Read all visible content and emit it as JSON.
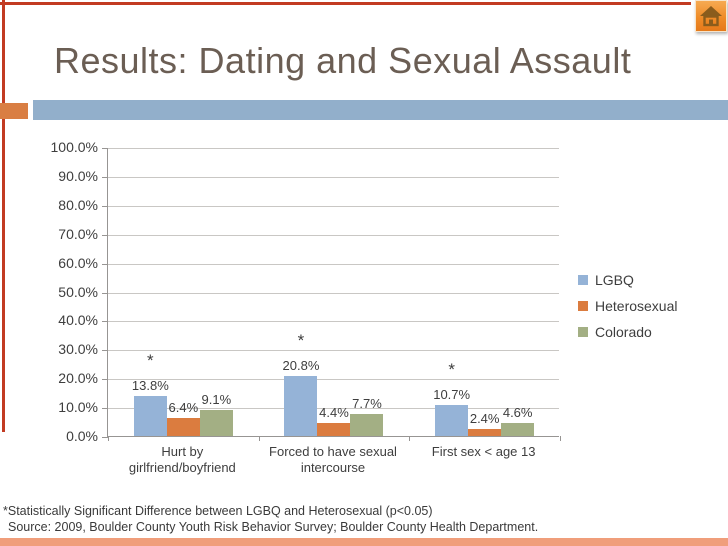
{
  "header": {
    "title": "Results: Dating and Sexual Assault"
  },
  "footnotes": {
    "significance": "*Statistically Significant Difference between LGBQ and Heterosexual (p<0.05)",
    "source": "Source: 2009, Boulder County Youth Risk Behavior Survey; Boulder County Health Department."
  },
  "icons": {
    "home_button": "home-icon"
  },
  "colors": {
    "accent_red": "#C23B22",
    "bottom_band": "#F09E7B",
    "title_text": "#6B5E54",
    "underline_orange": "#D97E43",
    "underline_blue": "#92AFCB",
    "home_button_orange": "#EF8C28",
    "gridline": "#C9C7C4",
    "axis": "#979593",
    "label_text": "#3E3E3E"
  },
  "chart_data": {
    "type": "bar",
    "title": "",
    "xlabel": "",
    "ylabel": "",
    "categories": [
      "Hurt by\ngirlfriend/boyfriend",
      "Forced to have sexual\nintercourse",
      "First sex < age 13"
    ],
    "series": [
      {
        "name": "LGBQ",
        "color": "#95B3D7",
        "values": [
          13.8,
          20.8,
          10.7
        ],
        "labels": [
          "13.8%",
          "20.8%",
          "10.7%"
        ]
      },
      {
        "name": "Heterosexual",
        "color": "#DB7C3F",
        "values": [
          6.4,
          4.4,
          2.4
        ],
        "labels": [
          "6.4%",
          "4.4%",
          "2.4%"
        ]
      },
      {
        "name": "Colorado",
        "color": "#A3AF84",
        "values": [
          9.1,
          7.7,
          4.6
        ],
        "labels": [
          "9.1%",
          "7.7%",
          "4.6%"
        ]
      }
    ],
    "significance": {
      "marker": "*",
      "series": "LGBQ",
      "categories": [
        0,
        1,
        2
      ]
    },
    "y_ticks": [
      "100.0%",
      "90.0%",
      "80.0%",
      "70.0%",
      "60.0%",
      "50.0%",
      "40.0%",
      "30.0%",
      "20.0%",
      "10.0%",
      "0.0%"
    ],
    "ylim": [
      0,
      100
    ],
    "grid": true,
    "legend_position": "right",
    "legend": [
      "LGBQ",
      "Heterosexual",
      "Colorado"
    ]
  }
}
